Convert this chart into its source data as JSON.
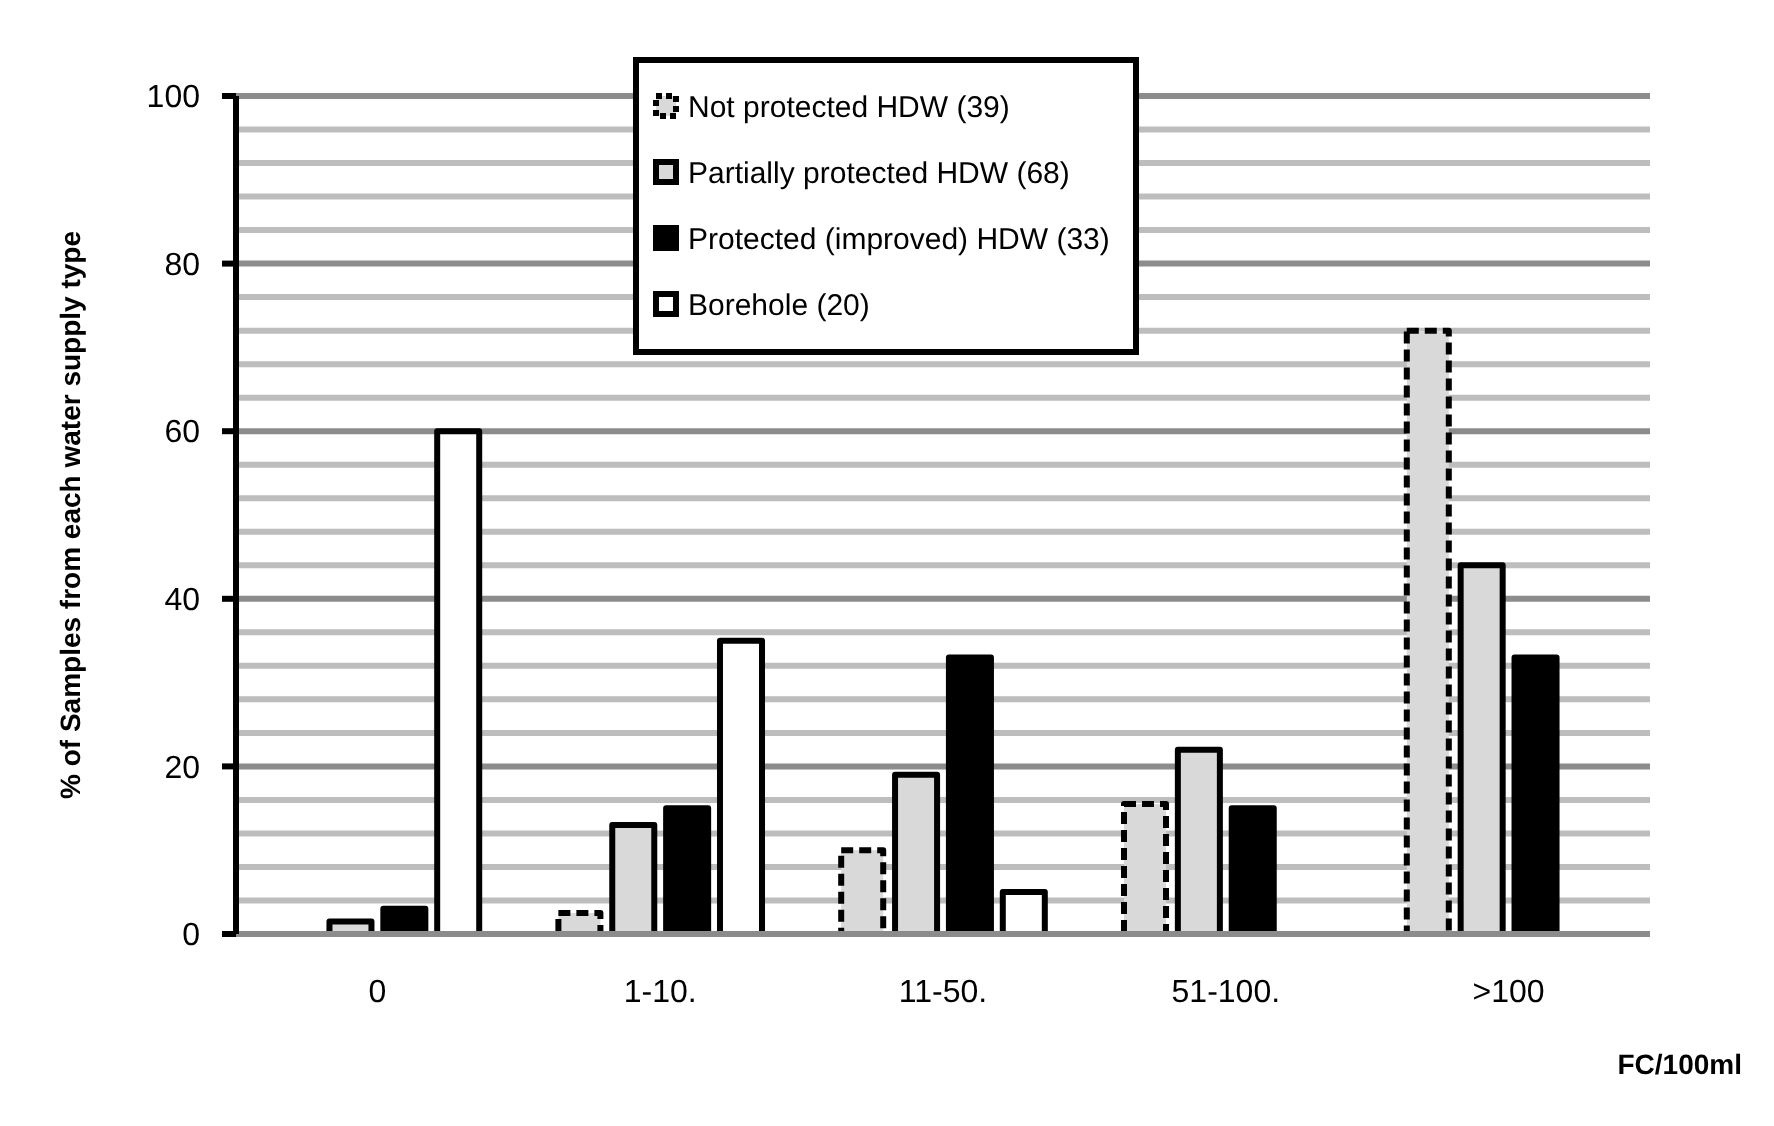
{
  "chart_data": {
    "type": "bar",
    "categories": [
      "0",
      "1-10.",
      "11-50.",
      "51-100.",
      ">100"
    ],
    "xlabel": "FC/100ml",
    "ylabel": "% of Samples from each water supply type",
    "ylim": [
      0,
      100
    ],
    "yticks": [
      0,
      {
        "value": 4,
        "label": null
      },
      {
        "value": 8,
        "label": null
      },
      {
        "value": 12,
        "label": null
      },
      {
        "value": 16,
        "label": null
      },
      20,
      {
        "value": 24,
        "label": null
      },
      {
        "value": 28,
        "label": null
      },
      {
        "value": 32,
        "label": null
      },
      {
        "value": 36,
        "label": null
      },
      40,
      {
        "value": 44,
        "label": null
      },
      {
        "value": 48,
        "label": null
      },
      {
        "value": 52,
        "label": null
      },
      {
        "value": 56,
        "label": null
      },
      60,
      {
        "value": 64,
        "label": null
      },
      {
        "value": 68,
        "label": null
      },
      {
        "value": 72,
        "label": null
      },
      {
        "value": 76,
        "label": null
      },
      80,
      {
        "value": 84,
        "label": null
      },
      {
        "value": 88,
        "label": null
      },
      {
        "value": 92,
        "label": null
      },
      {
        "value": 96,
        "label": null
      },
      100
    ],
    "grid": "y",
    "legend": "top",
    "series": [
      {
        "name": "Not protected HDW (39)",
        "color": "#d9d9d9",
        "line_style": "dashed",
        "values": [
          0,
          2.5,
          10,
          15.5,
          72
        ]
      },
      {
        "name": "Partially protected HDW (68)",
        "color": "#d9d9d9",
        "values": [
          1.5,
          13,
          19,
          22,
          44
        ]
      },
      {
        "name": "Protected (improved) HDW (33)",
        "color": "#000000",
        "values": [
          3,
          15,
          33,
          15,
          33
        ]
      },
      {
        "name": "Borehole (20)",
        "color": "#ffffff",
        "values": [
          60,
          35,
          5,
          0,
          0
        ]
      }
    ]
  }
}
